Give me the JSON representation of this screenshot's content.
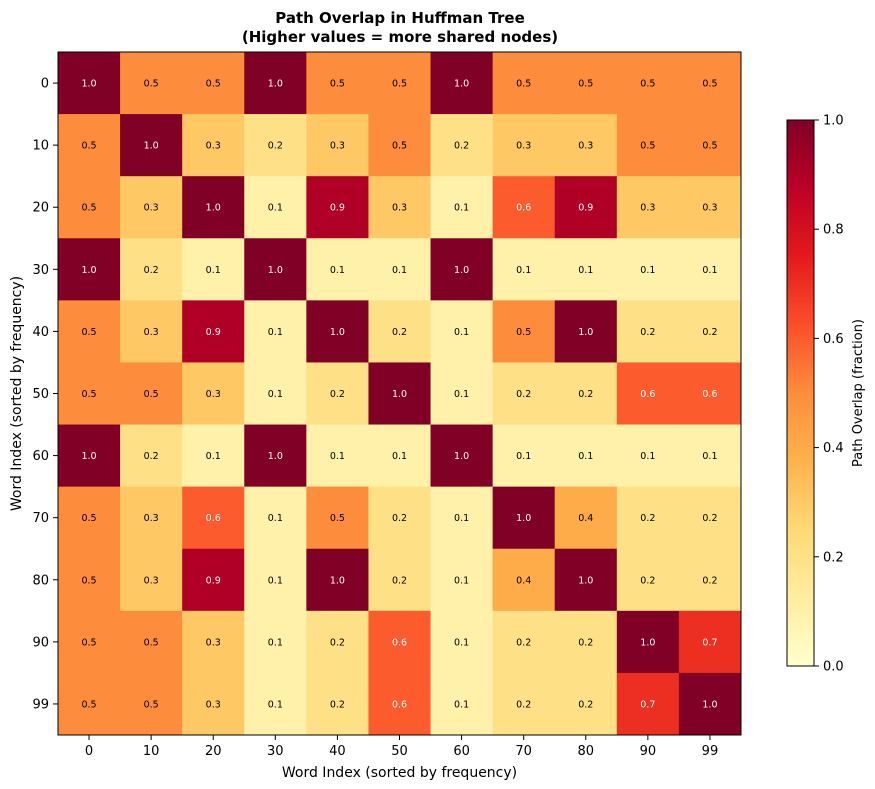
{
  "chart_data": {
    "type": "heatmap",
    "title_line1": "Path Overlap in Huffman Tree",
    "title_line2": "(Higher values = more shared nodes)",
    "xlabel": "Word Index (sorted by frequency)",
    "ylabel": "Word Index (sorted by frequency)",
    "x_categories": [
      "0",
      "10",
      "20",
      "30",
      "40",
      "50",
      "60",
      "70",
      "80",
      "90",
      "99"
    ],
    "y_categories": [
      "0",
      "10",
      "20",
      "30",
      "40",
      "50",
      "60",
      "70",
      "80",
      "90",
      "99"
    ],
    "values": [
      [
        1.0,
        0.5,
        0.5,
        1.0,
        0.5,
        0.5,
        1.0,
        0.5,
        0.5,
        0.5,
        0.5
      ],
      [
        0.5,
        1.0,
        0.3,
        0.2,
        0.3,
        0.5,
        0.2,
        0.3,
        0.3,
        0.5,
        0.5
      ],
      [
        0.5,
        0.3,
        1.0,
        0.1,
        0.9,
        0.3,
        0.1,
        0.6,
        0.9,
        0.3,
        0.3
      ],
      [
        1.0,
        0.2,
        0.1,
        1.0,
        0.1,
        0.1,
        1.0,
        0.1,
        0.1,
        0.1,
        0.1
      ],
      [
        0.5,
        0.3,
        0.9,
        0.1,
        1.0,
        0.2,
        0.1,
        0.5,
        1.0,
        0.2,
        0.2
      ],
      [
        0.5,
        0.5,
        0.3,
        0.1,
        0.2,
        1.0,
        0.1,
        0.2,
        0.2,
        0.6,
        0.6
      ],
      [
        1.0,
        0.2,
        0.1,
        1.0,
        0.1,
        0.1,
        1.0,
        0.1,
        0.1,
        0.1,
        0.1
      ],
      [
        0.5,
        0.3,
        0.6,
        0.1,
        0.5,
        0.2,
        0.1,
        1.0,
        0.4,
        0.2,
        0.2
      ],
      [
        0.5,
        0.3,
        0.9,
        0.1,
        1.0,
        0.2,
        0.1,
        0.4,
        1.0,
        0.2,
        0.2
      ],
      [
        0.5,
        0.5,
        0.3,
        0.1,
        0.2,
        0.6,
        0.1,
        0.2,
        0.2,
        1.0,
        0.7
      ],
      [
        0.5,
        0.5,
        0.3,
        0.1,
        0.2,
        0.6,
        0.1,
        0.2,
        0.2,
        0.7,
        1.0
      ]
    ],
    "value_range": [
      0.0,
      1.0
    ],
    "colormap": "YlOrRd",
    "colorbar": {
      "label": "Path Overlap (fraction)",
      "ticks": [
        "0.0",
        "0.2",
        "0.4",
        "0.6",
        "0.8",
        "1.0"
      ]
    }
  }
}
